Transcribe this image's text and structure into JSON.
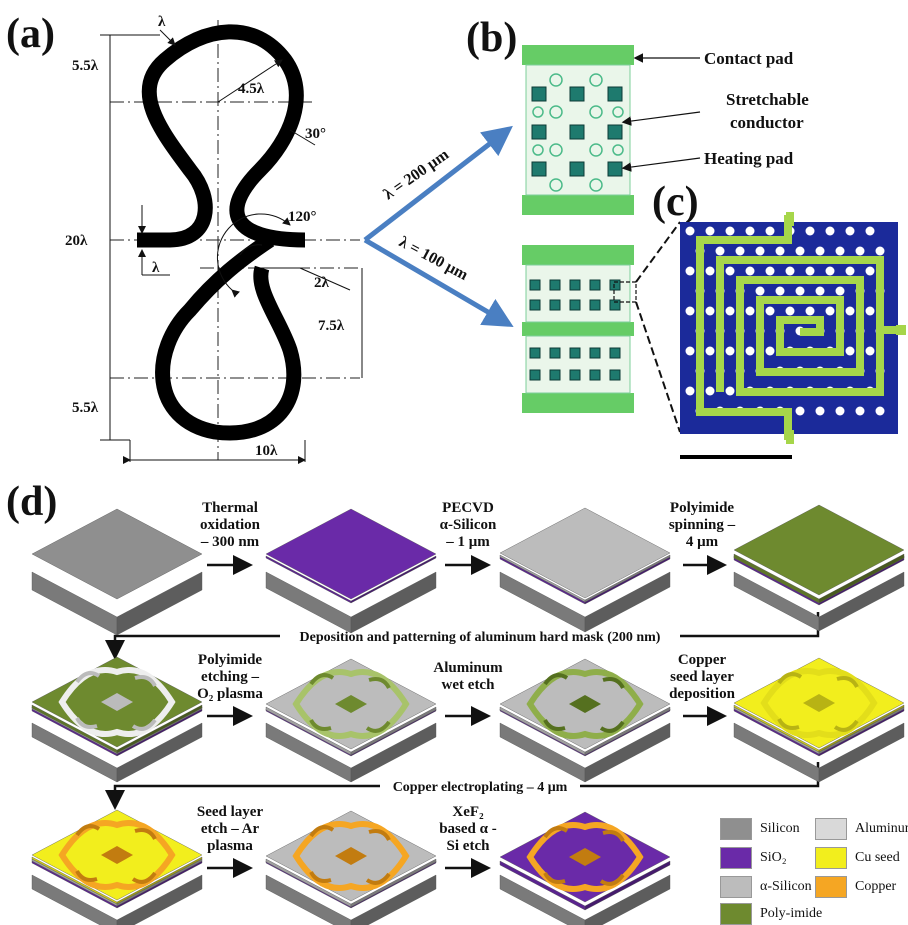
{
  "panels": {
    "a": "(a)",
    "b": "(b)",
    "c": "(c)",
    "d": "(d)"
  },
  "panel_a": {
    "dims": {
      "lambda_top": "λ",
      "top_margin": "5.5λ",
      "radius_outer": "4.5λ",
      "angle_30": "30°",
      "arm_width": "λ",
      "total_height": "20λ",
      "angle_120": "120°",
      "inner_radius": "2λ",
      "lower_height": "7.5λ",
      "bottom_margin": "5.5λ",
      "width": "10λ"
    }
  },
  "panel_b": {
    "label_200": "λ = 200 μm",
    "label_100": "λ = 100 μm",
    "annotations": [
      "Contact pad",
      "Stretchable conductor",
      "Heating pad"
    ],
    "stretchable_line1": "Stretchable",
    "stretchable_line2": "conductor"
  },
  "panel_d": {
    "steps": [
      {
        "text_lines": [
          "Thermal",
          "oxidation",
          "– 300 nm"
        ]
      },
      {
        "text_lines": [
          "PECVD",
          "α-Silicon",
          "– 1 μm"
        ]
      },
      {
        "text_lines": [
          "Polyimide",
          "spinning –",
          "4 μm"
        ]
      },
      {
        "text_lines": [
          "Polyimide",
          "etching –",
          "O₂ plasma"
        ]
      },
      {
        "text_lines": [
          "Aluminum",
          "wet etch"
        ]
      },
      {
        "text_lines": [
          "Copper",
          "seed layer",
          "deposition"
        ]
      },
      {
        "text_lines": [
          "Seed layer",
          "etch – Ar",
          "plasma"
        ]
      },
      {
        "text_lines": [
          "XeF₂",
          "based α -",
          "Si etch"
        ]
      }
    ],
    "row_connector_1": "Deposition and patterning of aluminum hard mask (200 nm)",
    "row_connector_2": "Copper electroplating – 4 μm"
  },
  "legend": [
    {
      "label": "Silicon",
      "color": "#8f8f8f"
    },
    {
      "label": "Aluminum",
      "color": "#d9d9d9"
    },
    {
      "label": "SiO₂",
      "color": "#6a2aa8"
    },
    {
      "label": "Cu seed",
      "color": "#f2ee1d"
    },
    {
      "label": "α-Silicon",
      "color": "#bcbcbc"
    },
    {
      "label": "Copper",
      "color": "#f5a623"
    },
    {
      "label": "Poly-imide",
      "color": "#6e8a2f"
    }
  ],
  "colors": {
    "arrow_blue": "#4a7fc2",
    "pad_green": "#66cc66",
    "heater_blue": "#1b2a9a",
    "heater_trace": "#a6d64a"
  }
}
